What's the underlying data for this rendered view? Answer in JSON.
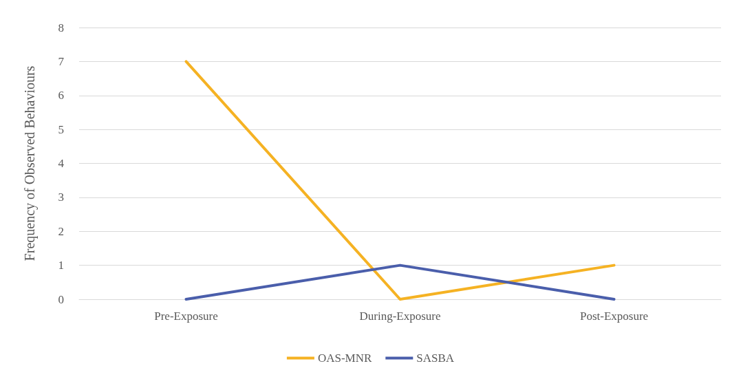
{
  "chart_data": {
    "type": "line",
    "ylabel": "Frequency of Observed Behaviours",
    "categories": [
      "Pre-Exposure",
      "During-Exposure",
      "Post-Exposure"
    ],
    "series": [
      {
        "name": "OAS-MNR",
        "color": "#f5b223",
        "values": [
          7,
          0,
          1
        ]
      },
      {
        "name": "SASBA",
        "color": "#4a5eab",
        "values": [
          0,
          1,
          0
        ]
      }
    ],
    "ylim": [
      0,
      8
    ],
    "yticks": [
      0,
      1,
      2,
      3,
      4,
      5,
      6,
      7,
      8
    ],
    "grid": "y",
    "legend": "bottom",
    "marker": "none"
  }
}
